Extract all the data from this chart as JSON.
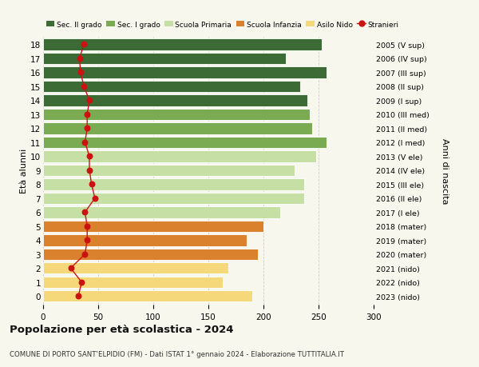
{
  "ages": [
    18,
    17,
    16,
    15,
    14,
    13,
    12,
    11,
    10,
    9,
    8,
    7,
    6,
    5,
    4,
    3,
    2,
    1,
    0
  ],
  "right_labels": [
    "2005 (V sup)",
    "2006 (IV sup)",
    "2007 (III sup)",
    "2008 (II sup)",
    "2009 (I sup)",
    "2010 (III med)",
    "2011 (II med)",
    "2012 (I med)",
    "2013 (V ele)",
    "2014 (IV ele)",
    "2015 (III ele)",
    "2016 (II ele)",
    "2017 (I ele)",
    "2018 (mater)",
    "2019 (mater)",
    "2020 (mater)",
    "2021 (nido)",
    "2022 (nido)",
    "2023 (nido)"
  ],
  "bar_values": [
    253,
    220,
    257,
    233,
    240,
    242,
    244,
    257,
    248,
    228,
    237,
    237,
    215,
    200,
    185,
    195,
    168,
    163,
    190
  ],
  "bar_colors": [
    "#3d6b35",
    "#3d6b35",
    "#3d6b35",
    "#3d6b35",
    "#3d6b35",
    "#7aab52",
    "#7aab52",
    "#7aab52",
    "#c5dfa5",
    "#c5dfa5",
    "#c5dfa5",
    "#c5dfa5",
    "#c5dfa5",
    "#d9812c",
    "#d9812c",
    "#d9812c",
    "#f5d87a",
    "#f5d87a",
    "#f5d87a"
  ],
  "stranieri_values": [
    37,
    33,
    34,
    37,
    42,
    40,
    40,
    38,
    42,
    42,
    44,
    47,
    38,
    40,
    40,
    38,
    25,
    35,
    32
  ],
  "title": "Popolazione per età scolastica - 2024",
  "subtitle": "COMUNE DI PORTO SANT'ELPIDIO (FM) - Dati ISTAT 1° gennaio 2024 - Elaborazione TUTTITALIA.IT",
  "ylabel_left": "Età alunni",
  "ylabel_right": "Anni di nascita",
  "legend_labels": [
    "Sec. II grado",
    "Sec. I grado",
    "Scuola Primaria",
    "Scuola Infanzia",
    "Asilo Nido",
    "Stranieri"
  ],
  "legend_colors": [
    "#3d6b35",
    "#7aab52",
    "#c5dfa5",
    "#d9812c",
    "#f5d87a",
    "#cc1111"
  ],
  "xlim": [
    0,
    300
  ],
  "xticks": [
    0,
    50,
    100,
    150,
    200,
    250,
    300
  ],
  "background_color": "#f7f7ee",
  "bar_height": 0.82
}
